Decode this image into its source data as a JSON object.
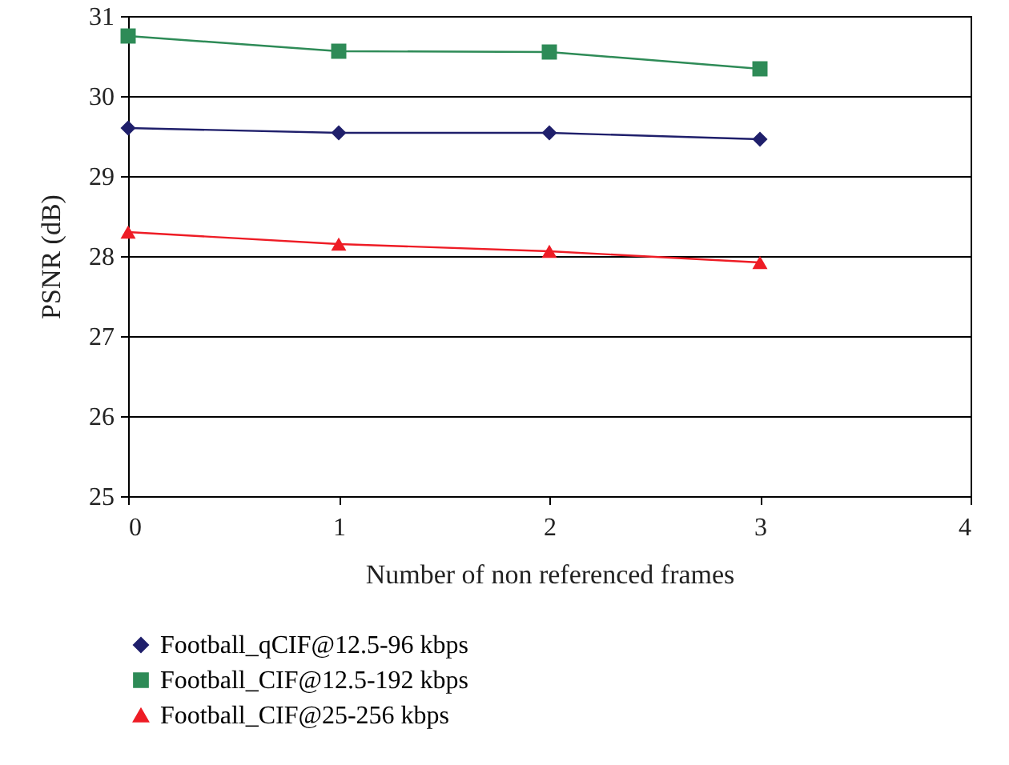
{
  "chart_data": {
    "type": "line",
    "xlabel": "Number of non referenced frames",
    "ylabel": "PSNR (dB)",
    "x": [
      0,
      1,
      2,
      3
    ],
    "xlim": [
      0,
      4
    ],
    "xticks": [
      0,
      1,
      2,
      3,
      4
    ],
    "ylim": [
      25,
      31
    ],
    "yticks": [
      25,
      26,
      27,
      28,
      29,
      30,
      31
    ],
    "grid": "y",
    "legend": "bottom",
    "series": [
      {
        "name": "Football_qCIF@12.5-96 kbps",
        "color": "#1f1f6b",
        "marker": "diamond",
        "values": [
          29.6,
          29.54,
          29.54,
          29.46
        ]
      },
      {
        "name": "Football_CIF@12.5-192 kbps",
        "color": "#2e8b57",
        "marker": "square",
        "values": [
          30.75,
          30.56,
          30.55,
          30.34
        ]
      },
      {
        "name": "Football_CIF@25-256 kbps",
        "color": "#ee1c25",
        "marker": "triangle",
        "values": [
          28.3,
          28.15,
          28.06,
          27.92
        ]
      }
    ]
  }
}
